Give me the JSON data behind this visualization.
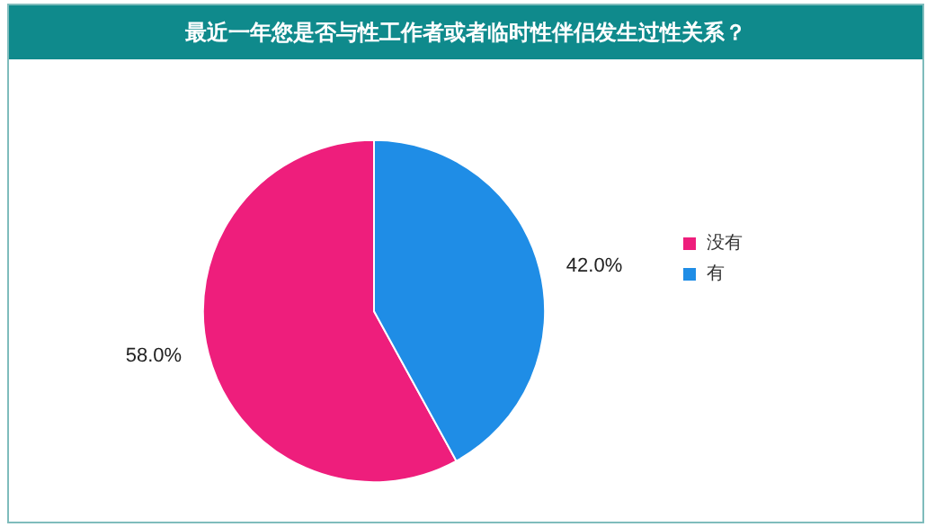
{
  "chart_data": {
    "type": "pie",
    "title": "最近一年您是否与性工作者或者临时性伴侣发生过性关系？",
    "categories": [
      "没有",
      "有"
    ],
    "values": [
      58,
      42
    ],
    "value_labels": [
      "58.0%",
      "42.0%"
    ],
    "colors": [
      "#ee1e7c",
      "#1f8de6"
    ],
    "legend": "right"
  }
}
